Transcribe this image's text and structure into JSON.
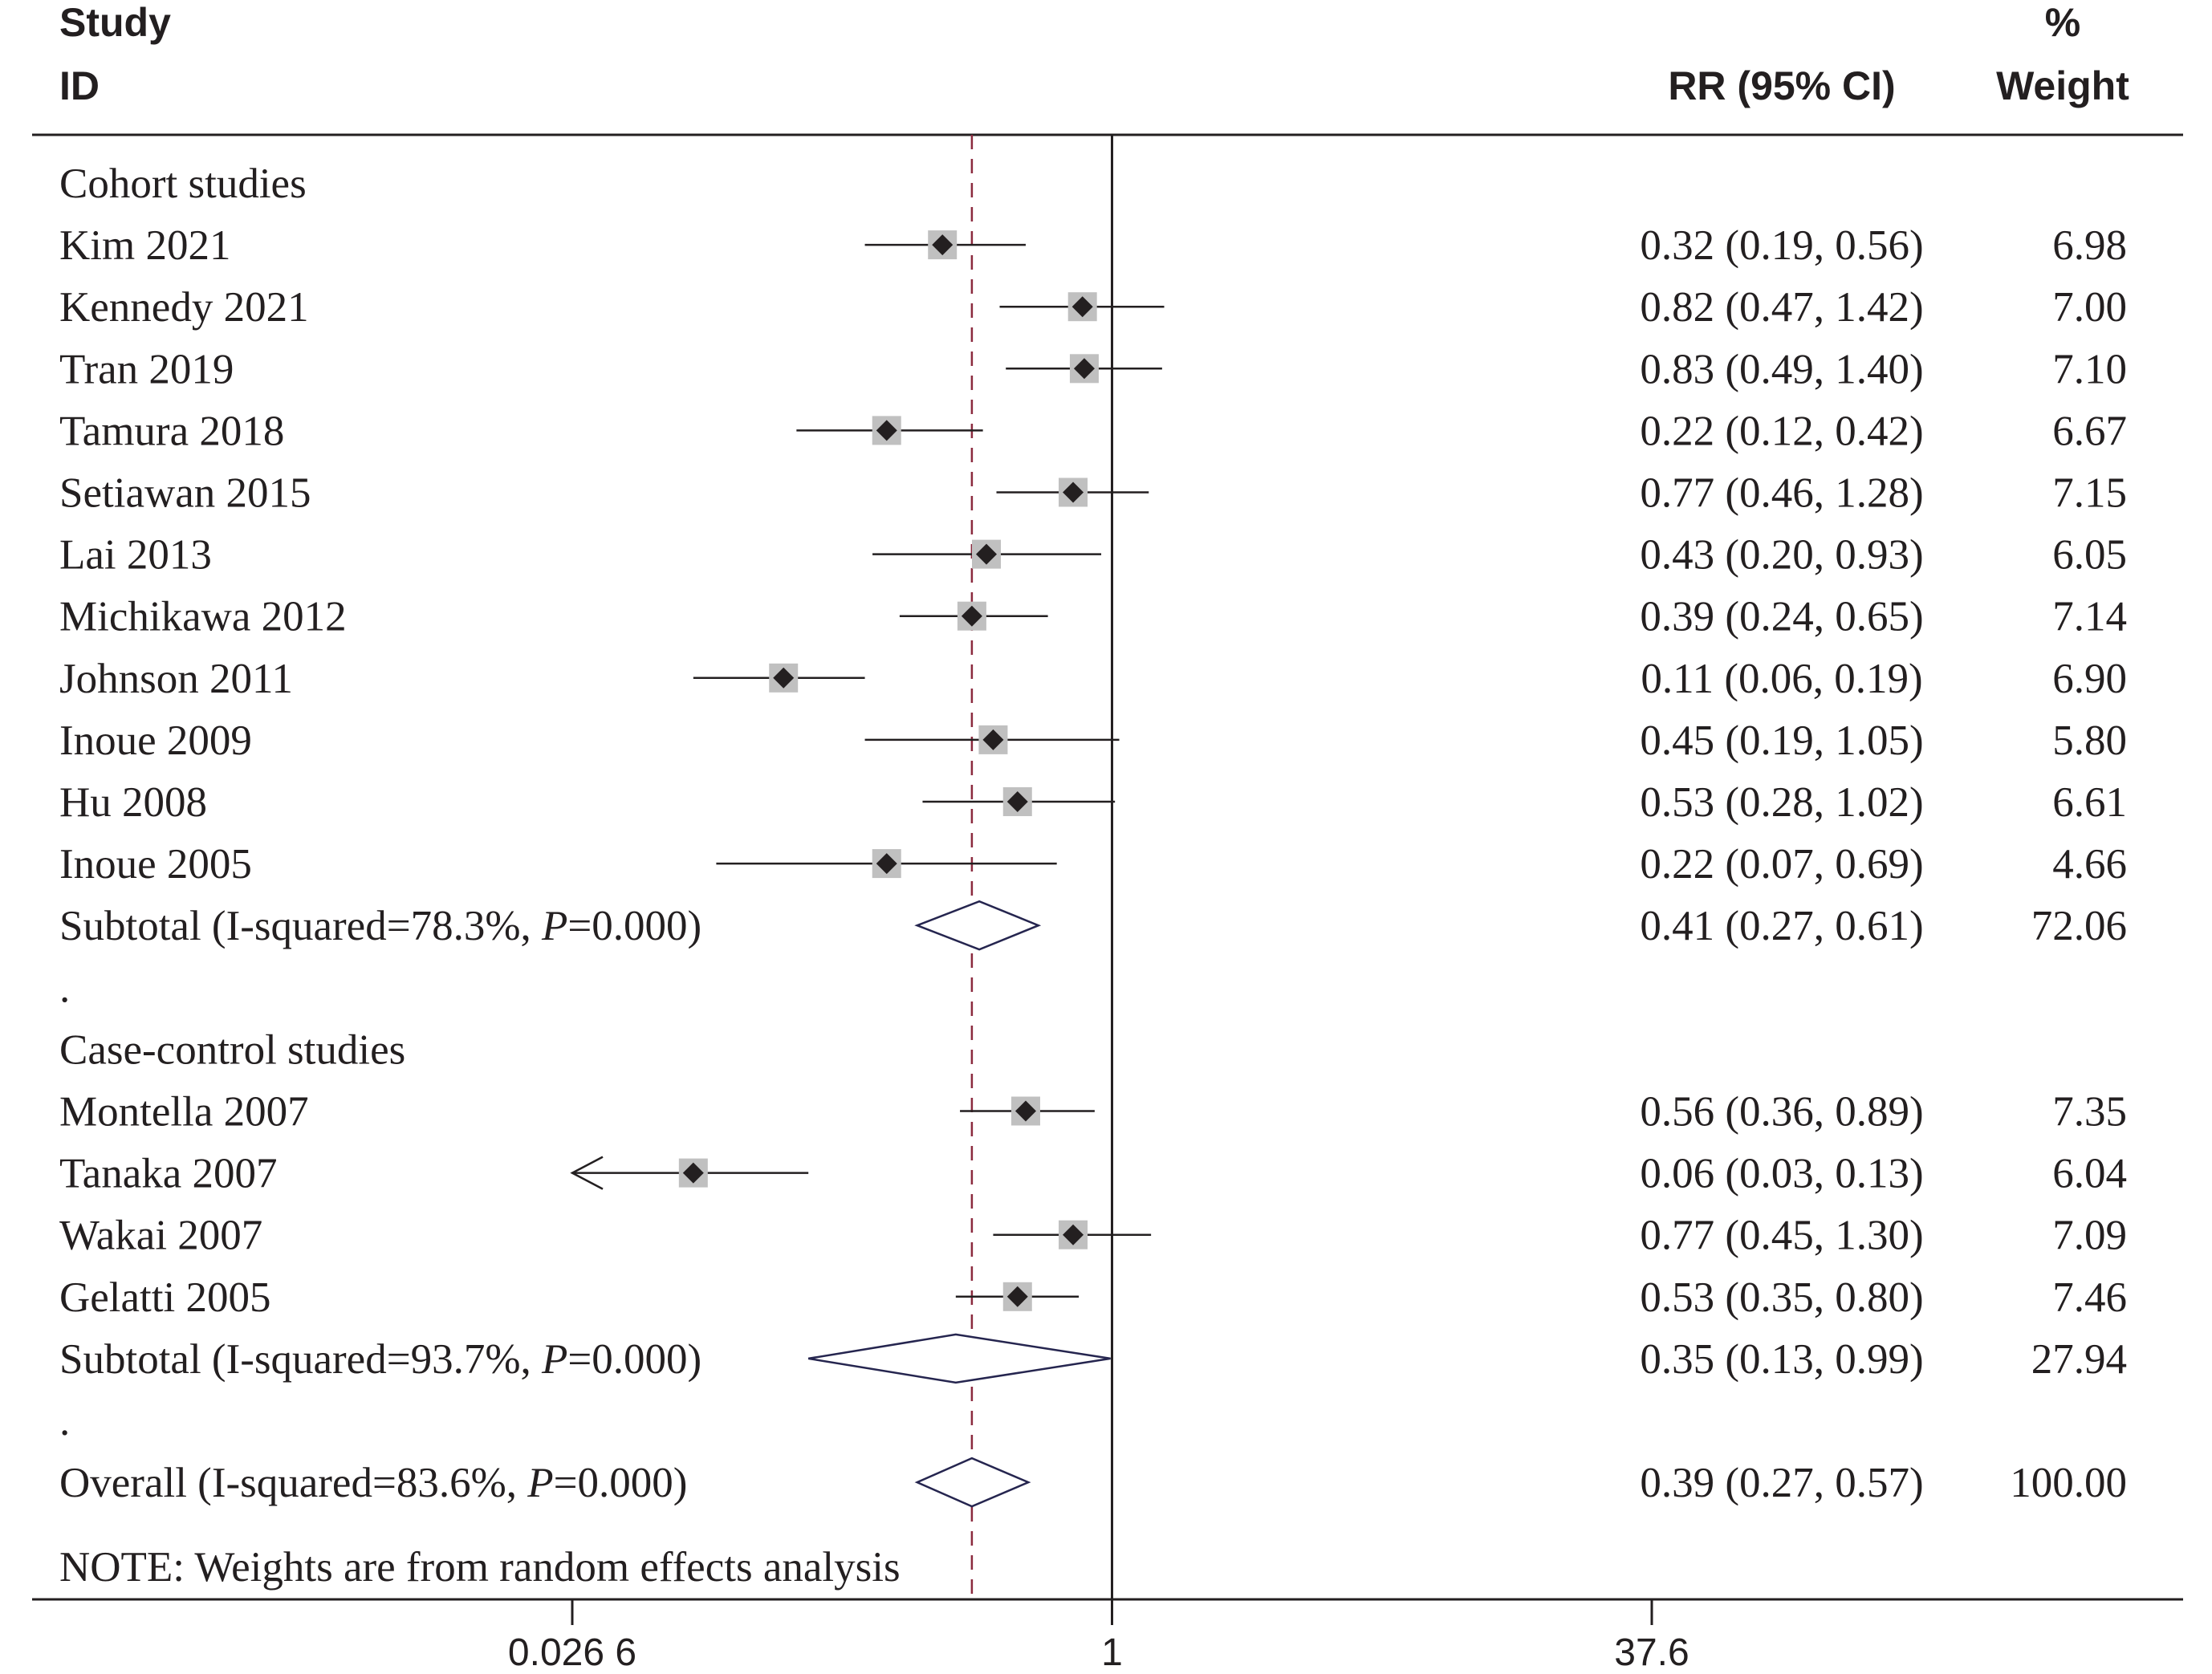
{
  "header": {
    "study_line1": "Study",
    "study_line2": "ID",
    "rr_label": "RR (95% CI)",
    "weight_line1": "%",
    "weight_line2": "Weight"
  },
  "footnote": "NOTE: Weights are from random effects analysis",
  "colors": {
    "text": "#231f20",
    "weight_box": "#c0c0c0",
    "diamond_outline": "#25254f",
    "reference_dashed": "#8b2a3e"
  },
  "chart_data": {
    "type": "forest",
    "xscale": "log",
    "xticks": [
      {
        "value": 0.0266,
        "label": "0.026 6"
      },
      {
        "value": 1,
        "label": "1"
      },
      {
        "value": 37.6,
        "label": "37.6"
      }
    ],
    "xlim": [
      0.0266,
      37.6
    ],
    "null_line": 1,
    "overall_line": 0.39,
    "rows": [
      {
        "kind": "group",
        "label": "Cohort studies"
      },
      {
        "kind": "study",
        "label": "Kim 2021",
        "est": 0.32,
        "lo": 0.19,
        "hi": 0.56,
        "weight": 6.98,
        "ci_text": "0.32 (0.19, 0.56)",
        "weight_text": "6.98"
      },
      {
        "kind": "study",
        "label": "Kennedy 2021",
        "est": 0.82,
        "lo": 0.47,
        "hi": 1.42,
        "weight": 7.0,
        "ci_text": "0.82 (0.47, 1.42)",
        "weight_text": "7.00"
      },
      {
        "kind": "study",
        "label": "Tran 2019",
        "est": 0.83,
        "lo": 0.49,
        "hi": 1.4,
        "weight": 7.1,
        "ci_text": "0.83 (0.49, 1.40)",
        "weight_text": "7.10"
      },
      {
        "kind": "study",
        "label": "Tamura 2018",
        "est": 0.22,
        "lo": 0.12,
        "hi": 0.42,
        "weight": 6.67,
        "ci_text": "0.22 (0.12, 0.42)",
        "weight_text": "6.67"
      },
      {
        "kind": "study",
        "label": "Setiawan 2015",
        "est": 0.77,
        "lo": 0.46,
        "hi": 1.28,
        "weight": 7.15,
        "ci_text": "0.77 (0.46, 1.28)",
        "weight_text": "7.15"
      },
      {
        "kind": "study",
        "label": "Lai 2013",
        "est": 0.43,
        "lo": 0.2,
        "hi": 0.93,
        "weight": 6.05,
        "ci_text": "0.43 (0.20, 0.93)",
        "weight_text": "6.05"
      },
      {
        "kind": "study",
        "label": "Michikawa 2012",
        "est": 0.39,
        "lo": 0.24,
        "hi": 0.65,
        "weight": 7.14,
        "ci_text": "0.39 (0.24, 0.65)",
        "weight_text": "7.14"
      },
      {
        "kind": "study",
        "label": "Johnson 2011",
        "est": 0.11,
        "lo": 0.06,
        "hi": 0.19,
        "weight": 6.9,
        "ci_text": "0.11 (0.06, 0.19)",
        "weight_text": "6.90"
      },
      {
        "kind": "study",
        "label": "Inoue 2009",
        "est": 0.45,
        "lo": 0.19,
        "hi": 1.05,
        "weight": 5.8,
        "ci_text": "0.45 (0.19, 1.05)",
        "weight_text": "5.80"
      },
      {
        "kind": "study",
        "label": "Hu 2008",
        "est": 0.53,
        "lo": 0.28,
        "hi": 1.02,
        "weight": 6.61,
        "ci_text": "0.53 (0.28, 1.02)",
        "weight_text": "6.61"
      },
      {
        "kind": "study",
        "label": "Inoue 2005",
        "est": 0.22,
        "lo": 0.07,
        "hi": 0.69,
        "weight": 4.66,
        "ci_text": "0.22 (0.07, 0.69)",
        "weight_text": "4.66"
      },
      {
        "kind": "subtotal",
        "label": "Subtotal  (I-squared=78.3%, ",
        "p_label": "P",
        "p_value": "=0.000)",
        "est": 0.41,
        "lo": 0.27,
        "hi": 0.61,
        "weight": 72.06,
        "ci_text": "0.41 (0.27, 0.61)",
        "weight_text": "72.06"
      },
      {
        "kind": "spacer",
        "label": "."
      },
      {
        "kind": "group",
        "label": "Case-control studies"
      },
      {
        "kind": "study",
        "label": "Montella 2007",
        "est": 0.56,
        "lo": 0.36,
        "hi": 0.89,
        "weight": 7.35,
        "ci_text": "0.56 (0.36, 0.89)",
        "weight_text": "7.35"
      },
      {
        "kind": "study",
        "label": "Tanaka 2007",
        "est": 0.06,
        "lo": 0.03,
        "hi": 0.13,
        "weight": 6.04,
        "ci_text": "0.06 (0.03, 0.13)",
        "weight_text": "6.04",
        "arrow_left": true
      },
      {
        "kind": "study",
        "label": "Wakai 2007",
        "est": 0.77,
        "lo": 0.45,
        "hi": 1.3,
        "weight": 7.09,
        "ci_text": "0.77 (0.45, 1.30)",
        "weight_text": "7.09"
      },
      {
        "kind": "study",
        "label": "Gelatti 2005",
        "est": 0.53,
        "lo": 0.35,
        "hi": 0.8,
        "weight": 7.46,
        "ci_text": "0.53 (0.35, 0.80)",
        "weight_text": "7.46"
      },
      {
        "kind": "subtotal",
        "label": "Subtotal  (I-squared=93.7%, ",
        "p_label": "P",
        "p_value": "=0.000)",
        "est": 0.35,
        "lo": 0.13,
        "hi": 0.99,
        "weight": 27.94,
        "ci_text": "0.35 (0.13, 0.99)",
        "weight_text": "27.94"
      },
      {
        "kind": "spacer",
        "label": "."
      },
      {
        "kind": "overall",
        "label": "Overall  (I-squared=83.6%, ",
        "p_label": "P",
        "p_value": "=0.000)",
        "est": 0.39,
        "lo": 0.27,
        "hi": 0.57,
        "weight": 100.0,
        "ci_text": "0.39 (0.27, 0.57)",
        "weight_text": "100.00"
      }
    ]
  }
}
